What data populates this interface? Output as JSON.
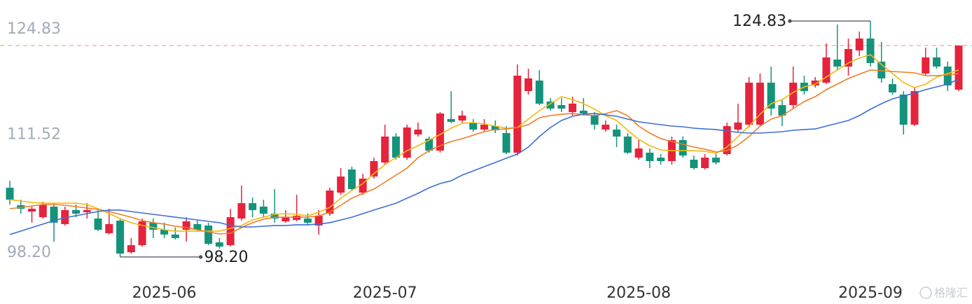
{
  "chart_data": {
    "type": "candlestick",
    "up_color": "#e5233c",
    "down_color": "#14937b",
    "ylim": [
      96.37,
      126.41
    ],
    "yticks": [
      {
        "value": 98.2,
        "label": "98.20"
      },
      111.52,
      124.83
    ],
    "grid": false,
    "last_price_line": true,
    "categories": [
      null,
      null,
      null,
      null,
      null,
      null,
      null,
      null,
      null,
      null,
      null,
      null,
      null,
      null,
      "2025-06",
      null,
      null,
      null,
      null,
      null,
      null,
      null,
      null,
      null,
      null,
      null,
      null,
      null,
      null,
      null,
      null,
      null,
      null,
      null,
      "2025-07",
      null,
      null,
      null,
      null,
      null,
      null,
      null,
      null,
      null,
      null,
      null,
      null,
      null,
      null,
      null,
      null,
      null,
      null,
      null,
      null,
      null,
      null,
      "2025-08",
      null,
      null,
      null,
      null,
      null,
      null,
      null,
      null,
      null,
      null,
      null,
      null,
      null,
      null,
      null,
      null,
      null,
      null,
      null,
      null,
      "2025-09",
      null,
      null,
      null,
      null,
      null,
      null,
      null,
      null
    ],
    "ohlc": [
      [
        106.01,
        106.8,
        104.12,
        104.67
      ],
      [
        104.04,
        104.67,
        103.09,
        103.64
      ],
      [
        103.33,
        103.88,
        102.07,
        103.64
      ],
      [
        102.69,
        104.43,
        102.54,
        104.12
      ],
      [
        103.88,
        104.27,
        99.93,
        102.07
      ],
      [
        101.91,
        103.88,
        101.75,
        103.49
      ],
      [
        103.49,
        104.12,
        102.69,
        103.09
      ],
      [
        103.25,
        104.27,
        102.54,
        103.49
      ],
      [
        102.54,
        103.49,
        101.12,
        101.27
      ],
      [
        100.88,
        103.64,
        100.73,
        101.91
      ],
      [
        102.3,
        102.54,
        98.2,
        98.58
      ],
      [
        98.74,
        100.33,
        98.58,
        99.53
      ],
      [
        99.53,
        102.54,
        99.37,
        102.22
      ],
      [
        102.07,
        102.54,
        100.33,
        101.27
      ],
      [
        101.27,
        102.07,
        100.33,
        100.73
      ],
      [
        100.73,
        101.52,
        100.17,
        100.33
      ],
      [
        101.27,
        102.69,
        99.93,
        102.22
      ],
      [
        101.91,
        102.3,
        101.12,
        101.27
      ],
      [
        101.75,
        102.07,
        99.53,
        99.69
      ],
      [
        99.85,
        100.33,
        99.14,
        99.37
      ],
      [
        99.53,
        103.64,
        99.37,
        102.69
      ],
      [
        102.54,
        106.25,
        102.3,
        104.27
      ],
      [
        104.27,
        104.91,
        102.69,
        103.49
      ],
      [
        103.88,
        104.67,
        102.69,
        103.09
      ],
      [
        103.09,
        105.86,
        102.07,
        102.54
      ],
      [
        102.22,
        103.49,
        102.07,
        102.69
      ],
      [
        102.38,
        105.22,
        102.22,
        102.85
      ],
      [
        102.54,
        103.09,
        101.75,
        102.07
      ],
      [
        101.75,
        103.49,
        100.73,
        102.85
      ],
      [
        103.09,
        106.01,
        102.85,
        105.7
      ],
      [
        105.46,
        108.23,
        105.22,
        107.28
      ],
      [
        108.07,
        108.39,
        105.7,
        105.86
      ],
      [
        105.46,
        107.6,
        105.22,
        107.04
      ],
      [
        107.28,
        109.41,
        107.04,
        109.02
      ],
      [
        108.86,
        113.13,
        108.62,
        111.79
      ],
      [
        111.79,
        112.18,
        109.18,
        109.41
      ],
      [
        109.41,
        113.13,
        109.18,
        112.81
      ],
      [
        112.02,
        113.37,
        111.79,
        112.58
      ],
      [
        111.55,
        111.79,
        109.97,
        110.2
      ],
      [
        110.2,
        114.55,
        109.97,
        114.39
      ],
      [
        113.76,
        116.92,
        113.29,
        113.45
      ],
      [
        113.6,
        114.71,
        113.37,
        114.16
      ],
      [
        113.37,
        113.76,
        112.34,
        112.58
      ],
      [
        112.58,
        113.76,
        112.34,
        113.13
      ],
      [
        112.97,
        113.6,
        112.18,
        112.5
      ],
      [
        112.18,
        112.97,
        109.81,
        109.97
      ],
      [
        109.97,
        119.93,
        109.65,
        118.66
      ],
      [
        116.92,
        119.45,
        116.53,
        118.35
      ],
      [
        118.11,
        119.3,
        115.34,
        115.5
      ],
      [
        115.74,
        116.13,
        114.71,
        114.95
      ],
      [
        115.34,
        116.13,
        114.55,
        114.95
      ],
      [
        114.55,
        116.29,
        114.16,
        115.5
      ],
      [
        114.71,
        116.13,
        114.16,
        114.39
      ],
      [
        114.16,
        114.55,
        112.58,
        113.13
      ],
      [
        112.58,
        113.6,
        112.34,
        113.13
      ],
      [
        112.58,
        113.13,
        110.6,
        111.79
      ],
      [
        111.79,
        112.18,
        109.81,
        109.97
      ],
      [
        109.41,
        111.39,
        109.18,
        110.44
      ],
      [
        109.97,
        110.44,
        108.23,
        109.02
      ],
      [
        109.41,
        109.81,
        108.62,
        109.02
      ],
      [
        109.02,
        111.79,
        108.62,
        111.39
      ],
      [
        111.39,
        111.79,
        109.41,
        109.65
      ],
      [
        109.18,
        109.65,
        108.07,
        108.23
      ],
      [
        108.23,
        109.81,
        108.07,
        109.41
      ],
      [
        109.41,
        109.81,
        108.62,
        108.86
      ],
      [
        109.81,
        113.37,
        109.65,
        112.97
      ],
      [
        112.58,
        115.5,
        112.34,
        113.37
      ],
      [
        113.13,
        118.5,
        112.81,
        117.87
      ],
      [
        113.13,
        118.9,
        112.97,
        117.87
      ],
      [
        117.87,
        119.69,
        114.16,
        114.95
      ],
      [
        115.34,
        115.97,
        112.97,
        114.16
      ],
      [
        115.34,
        119.69,
        114.95,
        117.87
      ],
      [
        117.87,
        118.66,
        116.53,
        116.92
      ],
      [
        117.56,
        118.5,
        117.32,
        118.11
      ],
      [
        117.87,
        122.3,
        117.71,
        120.72
      ],
      [
        120.48,
        124.43,
        119.3,
        119.69
      ],
      [
        119.69,
        122.85,
        118.66,
        121.67
      ],
      [
        121.51,
        123.64,
        120.88,
        122.85
      ],
      [
        122.85,
        124.83,
        119.69,
        120.09
      ],
      [
        120.24,
        122.46,
        117.87,
        118.35
      ],
      [
        117.71,
        118.35,
        116.53,
        116.77
      ],
      [
        116.53,
        116.92,
        112.02,
        113.13
      ],
      [
        113.13,
        117.32,
        112.97,
        116.92
      ],
      [
        118.9,
        121.82,
        118.66,
        120.72
      ],
      [
        120.72,
        121.82,
        119.45,
        119.69
      ],
      [
        119.69,
        120.24,
        116.92,
        117.56
      ],
      [
        117.08,
        122.06,
        116.92,
        122.06
      ]
    ],
    "series": [
      {
        "color": "#f2b90c",
        "values": [
          104.67,
          104.51,
          104.35,
          104.27,
          104.27,
          104.27,
          104.27,
          104.12,
          103.64,
          103.09,
          102.54,
          102.07,
          101.75,
          101.52,
          101.27,
          101.12,
          101.12,
          101.12,
          101.12,
          101.12,
          101.43,
          101.75,
          102.38,
          102.69,
          103.01,
          103.09,
          103.01,
          102.85,
          103.25,
          103.8,
          104.83,
          105.7,
          106.49,
          107.6,
          108.62,
          109.41,
          110.2,
          110.76,
          111.39,
          112.02,
          112.73,
          113.29,
          113.37,
          113.21,
          112.97,
          112.73,
          112.81,
          113.76,
          114.71,
          115.5,
          116.29,
          115.97,
          115.5,
          114.87,
          114.16,
          113.6,
          112.5,
          111.47,
          110.76,
          110.28,
          110.2,
          110.2,
          110.2,
          110.13,
          109.89,
          110.6,
          111.79,
          112.97,
          114.31,
          115.5,
          115.97,
          116.77,
          117.4,
          117.71,
          118.5,
          119.3,
          120.09,
          120.64,
          121.03,
          119.93,
          118.9,
          117.87,
          117.32,
          117.71,
          118.5,
          118.9,
          119.3
        ]
      },
      {
        "color": "#f07d24",
        "values": [
          103.64,
          103.8,
          103.96,
          104.12,
          104.12,
          104.04,
          103.88,
          103.72,
          103.56,
          103.33,
          103.01,
          102.69,
          102.3,
          102.07,
          101.91,
          101.67,
          101.52,
          101.27,
          101.03,
          100.8,
          100.88,
          101.52,
          102.07,
          102.46,
          102.69,
          102.69,
          102.69,
          102.69,
          102.85,
          103.25,
          104.04,
          104.83,
          105.38,
          105.86,
          106.65,
          107.44,
          108.23,
          109.41,
          110.2,
          110.76,
          111.23,
          111.55,
          111.94,
          112.34,
          112.58,
          112.65,
          112.81,
          113.13,
          113.92,
          114.16,
          114.31,
          114.39,
          114.24,
          114.16,
          114.39,
          114.71,
          114.16,
          112.97,
          112.18,
          111.55,
          111.23,
          110.92,
          110.6,
          110.36,
          110.05,
          110.2,
          110.84,
          111.79,
          112.97,
          113.76,
          114.16,
          114.95,
          115.74,
          116.29,
          117.08,
          117.71,
          118.35,
          118.82,
          119.3,
          119.22,
          119.14,
          119.06,
          118.98,
          118.66,
          118.66,
          118.74,
          118.9
        ]
      },
      {
        "color": "#3b6fd6",
        "values": [
          100.73,
          101.12,
          101.52,
          101.91,
          102.3,
          102.62,
          102.85,
          103.09,
          103.33,
          103.49,
          103.49,
          103.33,
          103.17,
          103.01,
          102.85,
          102.69,
          102.54,
          102.38,
          102.22,
          102.07,
          101.75,
          101.59,
          101.59,
          101.67,
          101.75,
          101.75,
          101.83,
          101.83,
          101.91,
          102.07,
          102.38,
          102.69,
          103.09,
          103.49,
          103.88,
          104.27,
          104.83,
          105.38,
          106.01,
          106.49,
          106.8,
          107.44,
          107.91,
          108.39,
          108.86,
          109.34,
          109.81,
          110.6,
          111.79,
          112.81,
          113.6,
          114.08,
          114.31,
          114.39,
          114.24,
          114.08,
          113.76,
          113.45,
          113.29,
          113.13,
          112.97,
          112.89,
          112.73,
          112.65,
          112.58,
          112.42,
          112.26,
          112.18,
          112.18,
          112.26,
          112.34,
          112.5,
          112.58,
          112.65,
          112.97,
          113.29,
          113.6,
          114.16,
          114.87,
          115.5,
          116.05,
          116.37,
          116.69,
          117.08,
          117.4,
          117.71,
          118.27
        ]
      }
    ],
    "annotations": [
      {
        "label": "124.83",
        "value": 124.83
      },
      {
        "label": "98.20",
        "value": 98.2
      }
    ],
    "watermark": "格隆汇"
  }
}
